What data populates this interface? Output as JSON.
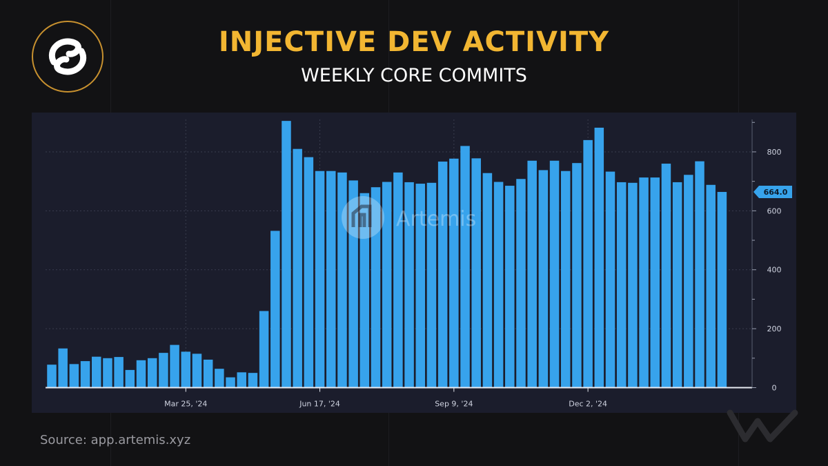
{
  "header": {
    "title": "INJECTIVE DEV ACTIVITY",
    "subtitle": "WEEKLY CORE COMMITS"
  },
  "footer": {
    "source": "Source: app.artemis.xyz"
  },
  "watermark": {
    "text": "Artemis"
  },
  "colors": {
    "bar": "#37a3ec",
    "title": "#f2b632",
    "panel": "#1b1d2c",
    "background": "#121214",
    "axis": "#cfd3e0"
  },
  "chart_data": {
    "type": "bar",
    "title": "INJECTIVE DEV ACTIVITY",
    "subtitle": "WEEKLY CORE COMMITS",
    "xlabel": "",
    "ylabel": "",
    "ylim": [
      0,
      910
    ],
    "yticks": [
      0,
      200,
      400,
      600,
      800
    ],
    "xtick_labels": [
      "Mar 25, '24",
      "Jun 17, '24",
      "Sep 9, '24",
      "Dec 2, '24"
    ],
    "xtick_bar_index": [
      12,
      24,
      36,
      48
    ],
    "last_value_label": "664.0",
    "grid": "x and y",
    "values": [
      78,
      133,
      80,
      90,
      105,
      100,
      104,
      60,
      93,
      100,
      118,
      145,
      122,
      115,
      95,
      64,
      35,
      52,
      50,
      260,
      532,
      905,
      810,
      782,
      735,
      735,
      730,
      703,
      660,
      680,
      698,
      730,
      697,
      692,
      695,
      767,
      777,
      820,
      778,
      728,
      698,
      685,
      708,
      770,
      738,
      770,
      735,
      762,
      840,
      882,
      733,
      697,
      695,
      713,
      713,
      760,
      697,
      722,
      768,
      688,
      664
    ]
  }
}
